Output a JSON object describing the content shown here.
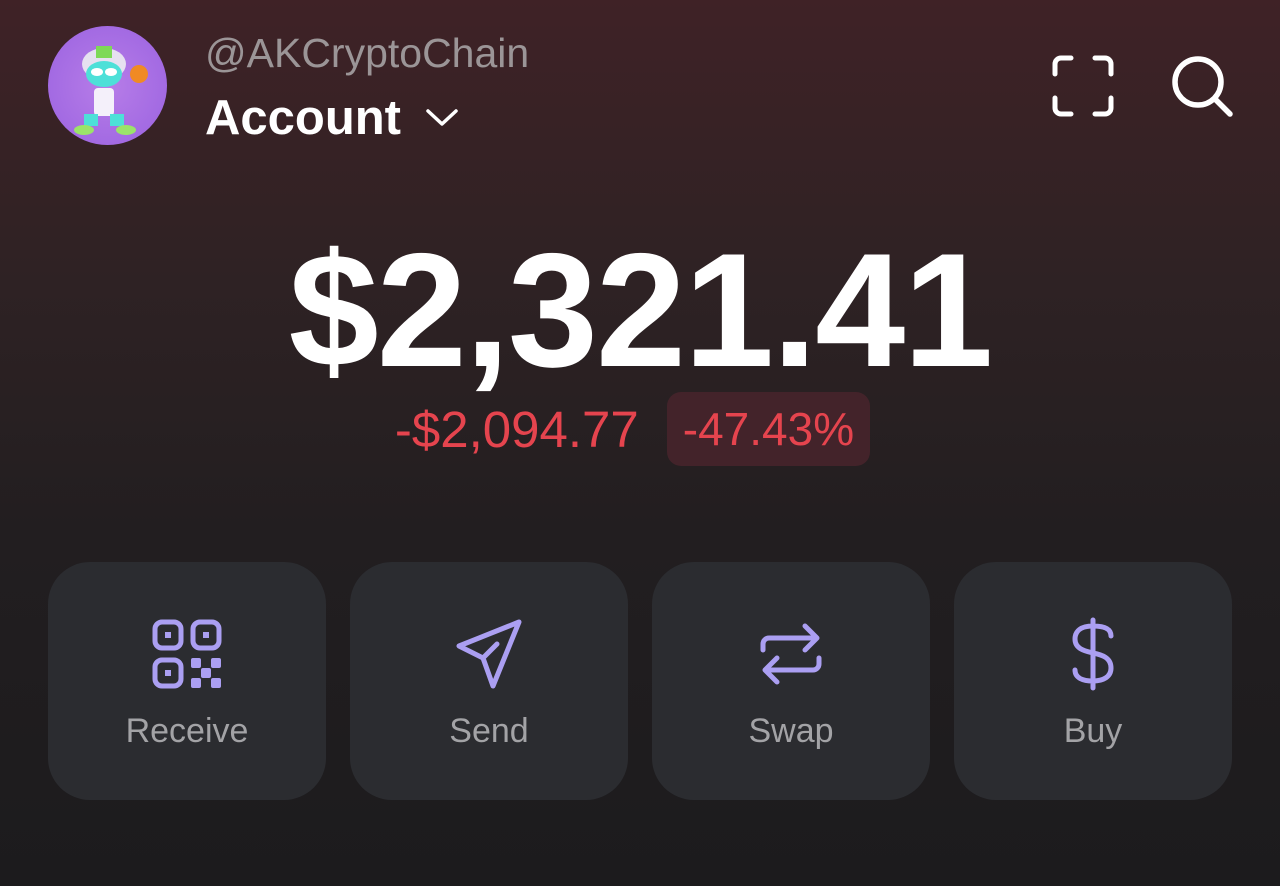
{
  "header": {
    "username": "@AKCryptoChain",
    "account_label": "Account",
    "icons": [
      "scan-icon",
      "search-icon"
    ]
  },
  "balance": {
    "total": "$2,321.41",
    "change_amount": "-$2,094.77",
    "change_percent": "-47.43%"
  },
  "colors": {
    "negative": "#e5444e",
    "accent": "#ab9ff2",
    "button_bg": "#2b2c30"
  },
  "actions": [
    {
      "label": "Receive",
      "icon": "qr-code-icon"
    },
    {
      "label": "Send",
      "icon": "send-icon"
    },
    {
      "label": "Swap",
      "icon": "swap-icon"
    },
    {
      "label": "Buy",
      "icon": "dollar-icon"
    }
  ]
}
